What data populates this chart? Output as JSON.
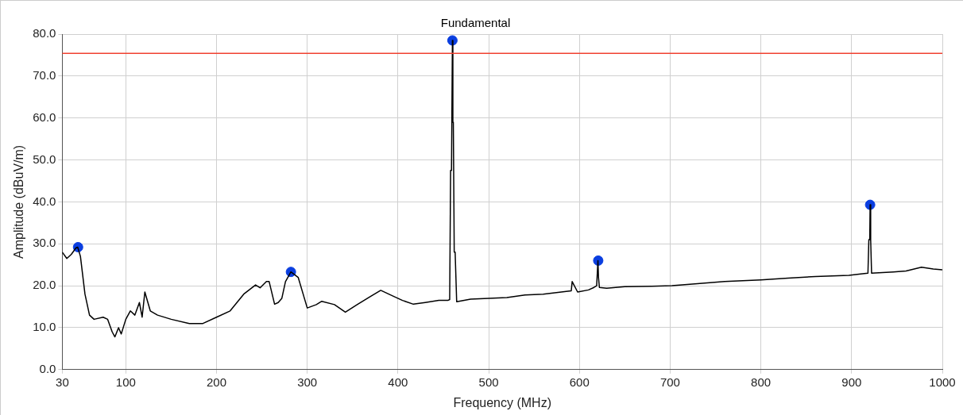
{
  "chart_data": {
    "type": "line",
    "title": "Fundamental",
    "xlabel": "Frequency (MHz)",
    "ylabel": "Amplitude (dBuV/m)",
    "series": [
      {
        "color": "#000000",
        "x": [
          30,
          35,
          40,
          45,
          47,
          50,
          55,
          60,
          65,
          75,
          80,
          85,
          88,
          92,
          95,
          100,
          105,
          110,
          115,
          118,
          121,
          127,
          135,
          150,
          170,
          185,
          200,
          215,
          230,
          243,
          248,
          255,
          258,
          264,
          268,
          272,
          276,
          282,
          290,
          300,
          310,
          316,
          330,
          342,
          355,
          370,
          381,
          395,
          405,
          417,
          430,
          445,
          455,
          457,
          458,
          459,
          460,
          460.5,
          461,
          462,
          463,
          464.7,
          480,
          500,
          520,
          540,
          560,
          580,
          591,
          592,
          598,
          610,
          616,
          619,
          620.4,
          621,
          622,
          630,
          650,
          680,
          702,
          730,
          760,
          800,
          830,
          860,
          897,
          910,
          918,
          919,
          920,
          920.4,
          921,
          922,
          946,
          960,
          977,
          990,
          1000
        ],
        "values": [
          28,
          26.5,
          27.5,
          29,
          29.2,
          27,
          18,
          13,
          12,
          12.5,
          12,
          9,
          7.8,
          10,
          8.5,
          12,
          14,
          13,
          16,
          12.5,
          18.5,
          14,
          13,
          12,
          11,
          11,
          12.5,
          14,
          18,
          20.2,
          19.5,
          21,
          21,
          15.6,
          16,
          17,
          21,
          23.3,
          22,
          14.7,
          15.5,
          16.3,
          15.5,
          13.7,
          15.5,
          17.5,
          18.9,
          17.5,
          16.5,
          15.6,
          16,
          16.5,
          16.5,
          16.7,
          47.5,
          47.5,
          78.5,
          59,
          59,
          28,
          28,
          16.2,
          16.8,
          17,
          17.2,
          17.8,
          18,
          18.5,
          18.8,
          21,
          18.5,
          19,
          19.6,
          20,
          26,
          22,
          19.6,
          19.4,
          19.8,
          19.9,
          20,
          20.5,
          21,
          21.4,
          21.8,
          22.2,
          22.5,
          22.8,
          23,
          31,
          31,
          39.3,
          31,
          23,
          23.3,
          23.5,
          24.4,
          24,
          23.8
        ]
      },
      {
        "type": "scatter",
        "color": "#0a3ee0",
        "marker": "circle",
        "x": [
          47.4,
          282,
          460,
          620.7,
          920.4
        ],
        "values": [
          29.2,
          23.3,
          78.5,
          26,
          39.3
        ]
      }
    ],
    "xlim": [
      30,
      1000
    ],
    "xticks": [
      30,
      100,
      200,
      300,
      400,
      500,
      600,
      700,
      800,
      900,
      1000
    ],
    "ylim": [
      0,
      80
    ],
    "yticks": [
      {
        "value": 0,
        "label": "0.0"
      },
      {
        "value": 10,
        "label": "10.0"
      },
      {
        "value": 20,
        "label": "20.0"
      },
      {
        "value": 30,
        "label": "30.0"
      },
      {
        "value": 40,
        "label": "40.0"
      },
      {
        "value": 50,
        "label": "50.0"
      },
      {
        "value": 60,
        "label": "60.0"
      },
      {
        "value": 70,
        "label": "70.0"
      },
      {
        "value": 80,
        "label": "80.0"
      }
    ],
    "ref_lines": [
      {
        "axis": "y",
        "value": 75.4,
        "color": "#f04030"
      }
    ],
    "grid": true,
    "legend": false,
    "marker": "none",
    "line_style": "solid"
  }
}
